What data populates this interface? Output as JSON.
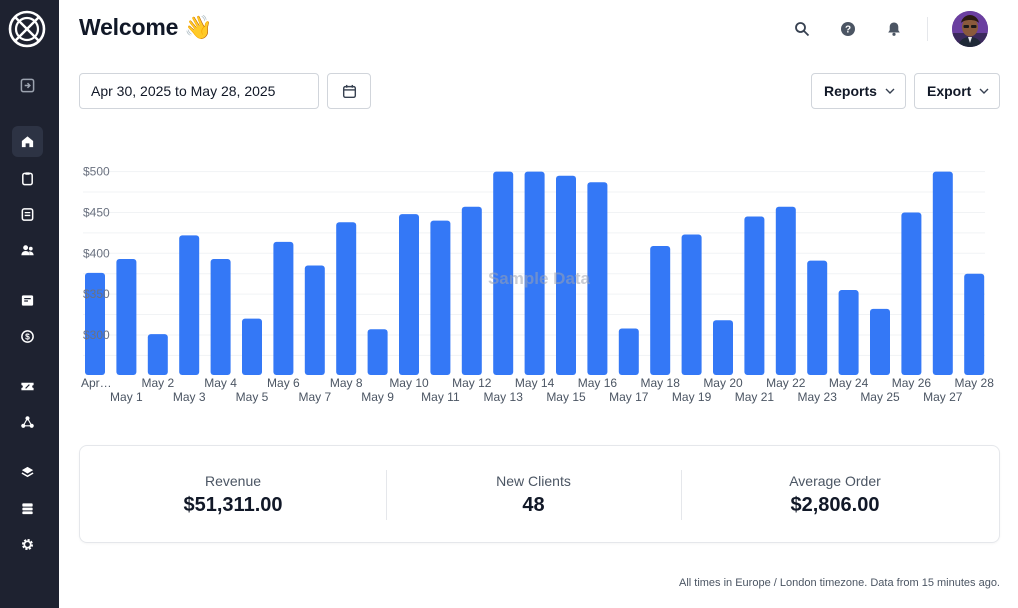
{
  "header": {
    "title": "Welcome 👋"
  },
  "toolbar": {
    "date_range": "Apr 30, 2025 to May 28, 2025",
    "reports_label": "Reports",
    "export_label": "Export"
  },
  "sidebar": {
    "items": [
      {
        "name": "sidebar-toggle",
        "icon": "collapse-arrow-icon"
      },
      {
        "name": "home",
        "icon": "home-icon",
        "active": true
      },
      {
        "name": "clipboard",
        "icon": "clipboard-icon"
      },
      {
        "name": "documents",
        "icon": "document-icon"
      },
      {
        "name": "clients",
        "icon": "users-icon"
      },
      {
        "name": "billing",
        "icon": "receipt-icon"
      },
      {
        "name": "payments",
        "icon": "dollar-cycle-icon"
      },
      {
        "name": "tickets",
        "icon": "ticket-icon"
      },
      {
        "name": "integrations",
        "icon": "nodes-icon"
      },
      {
        "name": "layers",
        "icon": "layers-icon"
      },
      {
        "name": "storage",
        "icon": "server-icon"
      },
      {
        "name": "settings",
        "icon": "gear-icon"
      }
    ]
  },
  "chart_data": {
    "type": "bar",
    "watermark": "Sample Data",
    "categories": [
      "Apr…",
      "May 1",
      "May 2",
      "May 3",
      "May 4",
      "May 5",
      "May 6",
      "May 7",
      "May 8",
      "May 9",
      "May 10",
      "May 11",
      "May 12",
      "May 13",
      "May 14",
      "May 15",
      "May 16",
      "May 17",
      "May 18",
      "May 19",
      "May 20",
      "May 21",
      "May 22",
      "May 23",
      "May 24",
      "May 25",
      "May 26",
      "May 27",
      "May 28"
    ],
    "values": [
      376,
      393,
      301,
      422,
      393,
      320,
      414,
      385,
      438,
      307,
      448,
      440,
      457,
      500,
      500,
      495,
      487,
      308,
      409,
      423,
      318,
      445,
      457,
      391,
      355,
      332,
      450,
      500,
      375
    ],
    "y_ticks": [
      "$300",
      "$350",
      "$400",
      "$450",
      "$500"
    ],
    "y_tick_values": [
      300,
      350,
      400,
      450,
      500
    ],
    "ylim": [
      251,
      502
    ],
    "grid": true,
    "bar_color": "#3478f6"
  },
  "stats": [
    {
      "label": "Revenue",
      "value": "$51,311.00"
    },
    {
      "label": "New Clients",
      "value": "48"
    },
    {
      "label": "Average Order",
      "value": "$2,806.00"
    }
  ],
  "footer": {
    "text": "All times in Europe / London timezone. Data from 15 minutes ago."
  }
}
